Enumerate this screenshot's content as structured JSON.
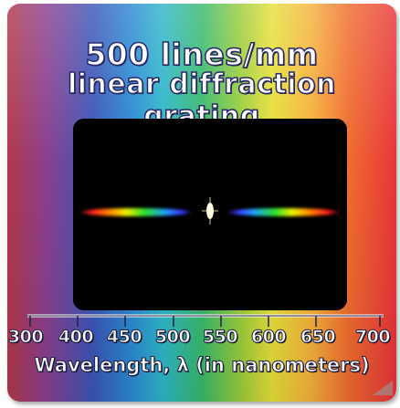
{
  "title": {
    "line1": "500 lines/mm",
    "line2": "linear diffraction grating"
  },
  "scale": {
    "labels": [
      "300",
      "400",
      "450",
      "500",
      "550",
      "600",
      "650",
      "700"
    ],
    "caption": "Wavelength, λ (in nanometers)"
  }
}
